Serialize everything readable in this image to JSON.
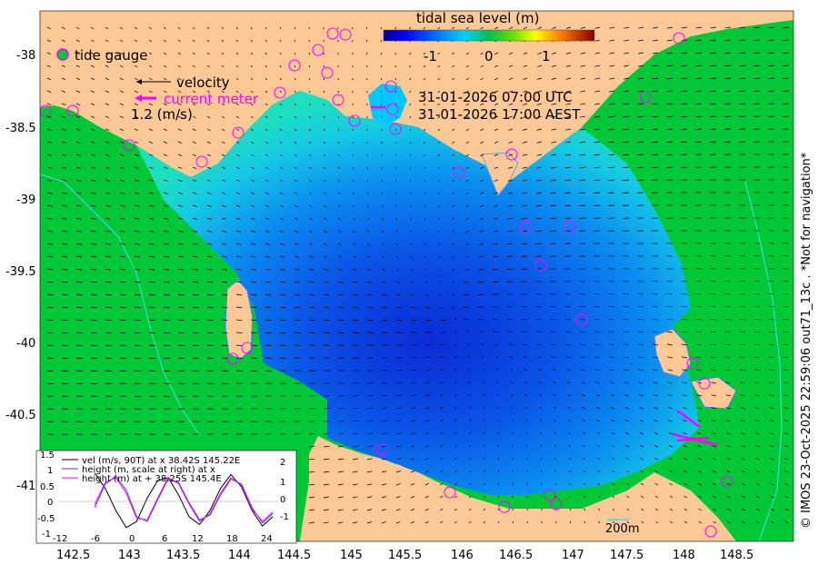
{
  "colorbar": {
    "title": "tidal sea level (m)",
    "ticks": [
      "-1",
      "0",
      "1"
    ],
    "colors": [
      "#00008f",
      "#0000ff",
      "#0060ff",
      "#00c0ff",
      "#00e0a0",
      "#00c000",
      "#80e000",
      "#ffff00",
      "#ff8000",
      "#c00000",
      "#800000"
    ]
  },
  "legend": {
    "tide_gauge": "tide gauge",
    "velocity": "velocity",
    "current_meter": "current meter",
    "scale": "1.2 (m/s)"
  },
  "time": {
    "utc": "31-01-2026 07:00 UTC",
    "local": "31-01-2026 17:00 AEST"
  },
  "axes": {
    "y_ticks": [
      "-38",
      "-38.5",
      "-39",
      "-39.5",
      "-40",
      "-40.5",
      "-41"
    ],
    "x_ticks": [
      "142.5",
      "143",
      "143.5",
      "144",
      "144.5",
      "145",
      "145.5",
      "146",
      "146.5",
      "147",
      "147.5",
      "148",
      "148.5"
    ]
  },
  "contour_label": "200m",
  "credit": "© IMOS 23-Oct-2025 22:59:06 out71_13c .  *Not for navigation*",
  "inset": {
    "legend": [
      "vel (m/s, 90T) at x 38.42S 145.22E",
      "height (m, scale at right) at x",
      "height (m) at + 38.25S 145.4E"
    ],
    "y_left_ticks": [
      "1.5",
      "1",
      "0.5",
      "0",
      "-0.5",
      "-1"
    ],
    "y_right_ticks": [
      "2",
      "1",
      "0",
      "-1"
    ],
    "x_ticks": [
      "-12",
      "-6",
      "0",
      "6",
      "12",
      "18",
      "24"
    ]
  },
  "colors": {
    "land": "#fcc896",
    "ocean_shallow": "#00c837",
    "accent_magenta": "#ff00ff"
  },
  "chart_data": {
    "type": "line",
    "xlim": [
      -15,
      27
    ],
    "ylim": [
      -1,
      1.5
    ],
    "series": [
      {
        "name": "vel (m/s, 90T) at x 38.42S 145.22E",
        "color": "#000000",
        "x": [
          -8,
          -6,
          -4,
          -2,
          0,
          2,
          4,
          6,
          8,
          10,
          12,
          14,
          16,
          18,
          20,
          22,
          24,
          26
        ],
        "y": [
          0.9,
          0.4,
          -0.3,
          -0.85,
          -0.65,
          0.1,
          0.65,
          0.75,
          0.2,
          -0.5,
          -0.75,
          -0.3,
          0.4,
          0.85,
          0.45,
          -0.3,
          -0.8,
          -0.5
        ]
      },
      {
        "name": "height (m, scale at right) at x",
        "color": "#4040ff",
        "x": [
          -8,
          -6,
          -4,
          -2,
          0,
          2,
          4,
          6,
          8,
          10,
          12,
          14,
          16,
          18,
          20,
          22,
          24,
          26
        ],
        "y": [
          -0.2,
          0.55,
          0.8,
          0.35,
          -0.5,
          -0.65,
          0.05,
          0.7,
          0.6,
          -0.05,
          -0.6,
          -0.45,
          0.2,
          0.7,
          0.55,
          -0.2,
          -0.7,
          -0.4
        ]
      },
      {
        "name": "height (m) at + 38.25S 145.4E",
        "color": "#ff00ff",
        "x": [
          -8,
          -6,
          -4,
          -2,
          0,
          2,
          4,
          6,
          8,
          10,
          12,
          14,
          16,
          18,
          20,
          22,
          24,
          26
        ],
        "y": [
          -0.1,
          0.6,
          0.75,
          0.25,
          -0.55,
          -0.6,
          0.1,
          0.75,
          0.55,
          -0.1,
          -0.65,
          -0.4,
          0.25,
          0.75,
          0.5,
          -0.25,
          -0.65,
          -0.35
        ]
      }
    ]
  }
}
